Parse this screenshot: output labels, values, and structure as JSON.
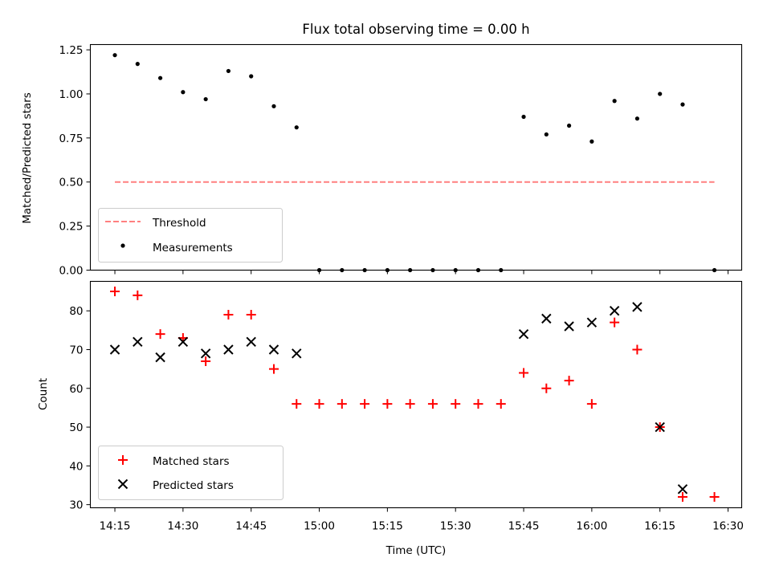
{
  "chart_data": [
    {
      "type": "scatter",
      "title": "Flux total observing time = 0.00 h",
      "xlabel": "",
      "ylabel": "Matched/Predicted stars",
      "ylim": [
        0.0,
        1.28
      ],
      "yticks": [
        "0.00",
        "0.25",
        "0.50",
        "0.75",
        "1.00",
        "1.25"
      ],
      "legend": {
        "placement": "lower-left",
        "entries": [
          "Threshold",
          "Measurements"
        ]
      },
      "threshold": {
        "name": "Threshold",
        "value": 0.5,
        "x_start": "14:15",
        "x_end": "16:27",
        "color": "#ff8080"
      },
      "series": [
        {
          "name": "Measurements",
          "color": "#000000",
          "x": [
            "14:15",
            "14:20",
            "14:25",
            "14:30",
            "14:35",
            "14:40",
            "14:45",
            "14:50",
            "14:55",
            "15:00",
            "15:05",
            "15:10",
            "15:15",
            "15:20",
            "15:25",
            "15:30",
            "15:35",
            "15:40",
            "15:45",
            "15:50",
            "15:55",
            "16:00",
            "16:05",
            "16:10",
            "16:15",
            "16:20",
            "16:27"
          ],
          "y": [
            1.22,
            1.17,
            1.09,
            1.01,
            0.97,
            1.13,
            1.1,
            0.93,
            0.81,
            0.0,
            0.0,
            0.0,
            0.0,
            0.0,
            0.0,
            0.0,
            0.0,
            0.0,
            0.87,
            0.77,
            0.82,
            0.73,
            0.96,
            0.86,
            1.0,
            0.94,
            0.0
          ]
        }
      ]
    },
    {
      "type": "scatter",
      "title": "",
      "xlabel": "Time (UTC)",
      "ylabel": "Count",
      "ylim": [
        29.2,
        87.6
      ],
      "yticks": [
        "30",
        "40",
        "50",
        "60",
        "70",
        "80"
      ],
      "xticks": [
        "14:15",
        "14:30",
        "14:45",
        "15:00",
        "15:15",
        "15:30",
        "15:45",
        "16:00",
        "16:15",
        "16:30"
      ],
      "legend": {
        "placement": "lower-left",
        "entries": [
          "Matched stars",
          "Predicted stars"
        ]
      },
      "series": [
        {
          "name": "Matched stars",
          "marker": "+",
          "color": "#ff0000",
          "x": [
            "14:15",
            "14:20",
            "14:25",
            "14:30",
            "14:35",
            "14:40",
            "14:45",
            "14:50",
            "14:55",
            "15:00",
            "15:05",
            "15:10",
            "15:15",
            "15:20",
            "15:25",
            "15:30",
            "15:35",
            "15:40",
            "15:45",
            "15:50",
            "15:55",
            "16:00",
            "16:05",
            "16:10",
            "16:15",
            "16:20",
            "16:27"
          ],
          "y": [
            85,
            84,
            74,
            73,
            67,
            79,
            79,
            65,
            56,
            56,
            56,
            56,
            56,
            56,
            56,
            56,
            56,
            56,
            64,
            60,
            62,
            56,
            77,
            70,
            50,
            32,
            32
          ]
        },
        {
          "name": "Predicted stars",
          "marker": "x",
          "color": "#000000",
          "x": [
            "14:15",
            "14:20",
            "14:25",
            "14:30",
            "14:35",
            "14:40",
            "14:45",
            "14:50",
            "14:55",
            "15:45",
            "15:50",
            "15:55",
            "16:00",
            "16:05",
            "16:10",
            "16:15",
            "16:20"
          ],
          "y": [
            70,
            72,
            68,
            72,
            69,
            70,
            72,
            70,
            69,
            74,
            78,
            76,
            77,
            80,
            81,
            50,
            34
          ]
        }
      ]
    }
  ]
}
